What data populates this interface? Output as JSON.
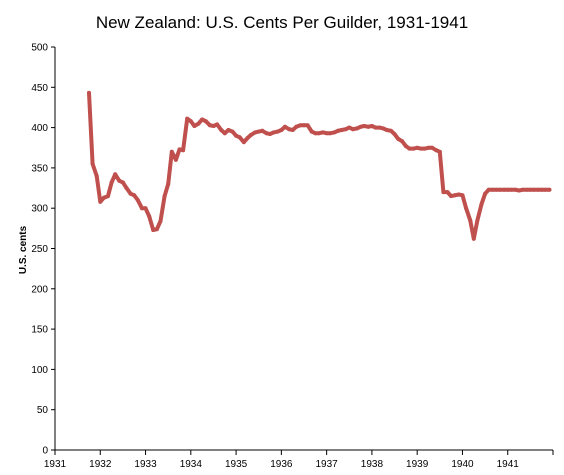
{
  "chart_data": {
    "type": "line",
    "title": "New Zealand: U.S. Cents Per Guilder, 1931-1941",
    "xlabel": "",
    "ylabel": "U.S. cents",
    "xlim": [
      1931,
      1942
    ],
    "ylim": [
      0,
      500
    ],
    "x_ticks": [
      "1931",
      "1932",
      "1933",
      "1934",
      "1935",
      "1936",
      "1937",
      "1938",
      "1939",
      "1940",
      "1941"
    ],
    "y_ticks": [
      "0",
      "50",
      "100",
      "150",
      "200",
      "250",
      "300",
      "350",
      "400",
      "450",
      "500"
    ],
    "grid": false,
    "legend": "none",
    "line_color": "#c0504d",
    "series": [
      {
        "x": [
          1931.75,
          1931.83,
          1931.92,
          1932.0,
          1932.08,
          1932.17,
          1932.25,
          1932.33,
          1932.42,
          1932.5,
          1932.58,
          1932.67,
          1932.75,
          1932.83,
          1932.92,
          1933.0,
          1933.08,
          1933.17,
          1933.25,
          1933.33,
          1933.42,
          1933.5,
          1933.58,
          1933.67,
          1933.75,
          1933.83,
          1933.92,
          1934.0,
          1934.08,
          1934.17,
          1934.25,
          1934.33,
          1934.42,
          1934.5,
          1934.58,
          1934.67,
          1934.75,
          1934.83,
          1934.92,
          1935.0,
          1935.08,
          1935.17,
          1935.25,
          1935.33,
          1935.42,
          1935.5,
          1935.58,
          1935.67,
          1935.75,
          1935.83,
          1935.92,
          1936.0,
          1936.08,
          1936.17,
          1936.25,
          1936.33,
          1936.42,
          1936.5,
          1936.58,
          1936.67,
          1936.75,
          1936.83,
          1936.92,
          1937.0,
          1937.08,
          1937.17,
          1937.25,
          1937.33,
          1937.42,
          1937.5,
          1937.58,
          1937.67,
          1937.75,
          1937.83,
          1937.92,
          1938.0,
          1938.08,
          1938.17,
          1938.25,
          1938.33,
          1938.42,
          1938.5,
          1938.58,
          1938.67,
          1938.75,
          1938.83,
          1938.92,
          1939.0,
          1939.08,
          1939.17,
          1939.25,
          1939.33,
          1939.42,
          1939.5,
          1939.58,
          1939.67,
          1939.75,
          1939.83,
          1939.92,
          1940.0,
          1940.08,
          1940.17,
          1940.25,
          1940.33,
          1940.42,
          1940.5,
          1940.58,
          1940.67,
          1940.75,
          1940.83,
          1940.92,
          1941.0,
          1941.08,
          1941.17,
          1941.25,
          1941.33,
          1941.42,
          1941.5,
          1941.58,
          1941.67,
          1941.75,
          1941.83,
          1941.92
        ],
        "values": [
          443,
          355,
          340,
          308,
          313,
          315,
          332,
          342,
          334,
          332,
          325,
          318,
          316,
          310,
          300,
          300,
          290,
          273,
          274,
          284,
          315,
          330,
          370,
          360,
          373,
          372,
          411,
          408,
          402,
          405,
          410,
          408,
          403,
          402,
          404,
          397,
          393,
          397,
          395,
          390,
          388,
          382,
          387,
          391,
          394,
          395,
          396,
          393,
          392,
          394,
          395,
          397,
          401,
          398,
          397,
          401,
          403,
          403,
          403,
          395,
          393,
          393,
          394,
          393,
          393,
          394,
          396,
          397,
          398,
          400,
          398,
          399,
          401,
          402,
          401,
          402,
          400,
          400,
          399,
          397,
          396,
          392,
          386,
          383,
          377,
          374,
          374,
          375,
          374,
          374,
          375,
          375,
          372,
          370,
          320,
          320,
          315,
          316,
          317,
          316,
          300,
          285,
          262,
          285,
          305,
          318,
          323,
          323,
          323,
          323,
          323,
          323,
          323,
          323,
          322,
          323,
          323,
          323,
          323,
          323,
          323,
          323,
          323
        ]
      }
    ]
  }
}
